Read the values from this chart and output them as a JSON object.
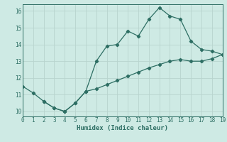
{
  "curve1_x": [
    0,
    1,
    2,
    3,
    4,
    5,
    6,
    7,
    8,
    9,
    10,
    11,
    12,
    13,
    14,
    15,
    16,
    17,
    18,
    19
  ],
  "curve1_y": [
    11.5,
    11.1,
    10.6,
    10.2,
    10.0,
    10.5,
    11.2,
    13.0,
    13.9,
    14.0,
    14.8,
    14.5,
    15.5,
    16.2,
    15.7,
    15.5,
    14.2,
    13.7,
    13.6,
    13.4
  ],
  "curve2_x": [
    0,
    1,
    2,
    3,
    4,
    5,
    6,
    7,
    8,
    9,
    10,
    11,
    12,
    13,
    14,
    15,
    16,
    17,
    18,
    19
  ],
  "curve2_y": [
    null,
    null,
    10.6,
    10.2,
    10.0,
    10.5,
    11.2,
    11.35,
    11.6,
    11.85,
    12.1,
    12.35,
    12.6,
    12.8,
    13.0,
    13.1,
    13.0,
    13.0,
    13.15,
    13.4
  ],
  "color": "#2d6e63",
  "bg_color": "#ceeae4",
  "grid_major_color": "#b8d4ce",
  "grid_minor_color": "#d4eae6",
  "xlabel": "Humidex (Indice chaleur)",
  "xlim": [
    0,
    19
  ],
  "ylim": [
    9.7,
    16.4
  ],
  "yticks": [
    10,
    11,
    12,
    13,
    14,
    15,
    16
  ],
  "xticks": [
    0,
    1,
    2,
    3,
    4,
    5,
    6,
    7,
    8,
    9,
    10,
    11,
    12,
    13,
    14,
    15,
    16,
    17,
    18,
    19
  ]
}
